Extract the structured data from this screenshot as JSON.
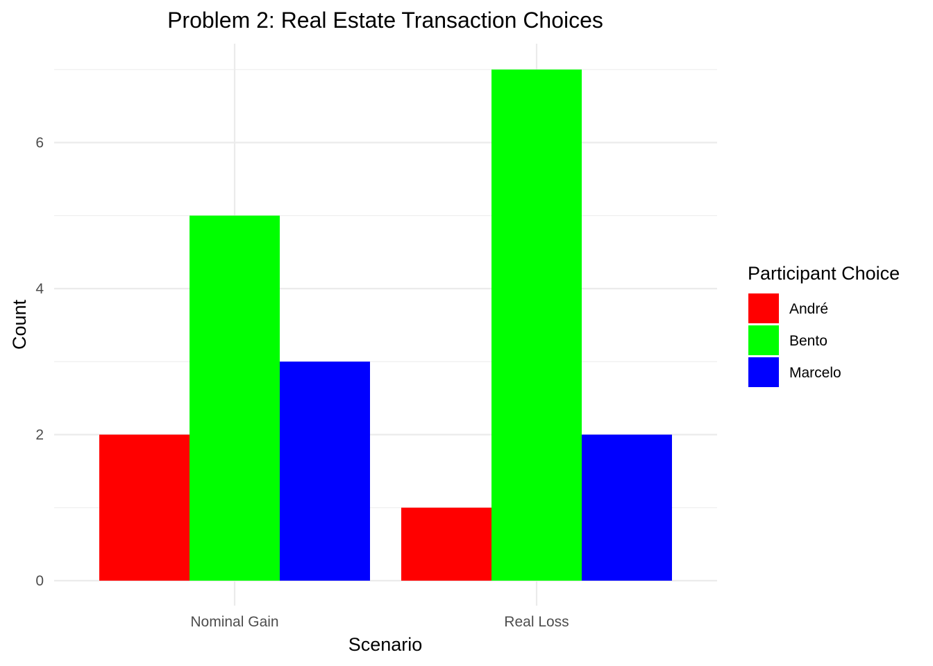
{
  "chart_data": {
    "type": "bar",
    "title": "Problem 2: Real Estate Transaction Choices",
    "xlabel": "Scenario",
    "ylabel": "Count",
    "categories": [
      "Nominal Gain",
      "Real Loss"
    ],
    "series": [
      {
        "name": "André",
        "color": "#ff0000",
        "values": [
          2,
          1
        ]
      },
      {
        "name": "Bento",
        "color": "#00ff00",
        "values": [
          5,
          7
        ]
      },
      {
        "name": "Marcelo",
        "color": "#0000ff",
        "values": [
          3,
          2
        ]
      }
    ],
    "ylim": [
      0,
      7
    ],
    "yticks": [
      "0",
      "2",
      "4",
      "6"
    ],
    "legend": {
      "title": "Participant Choice",
      "position": "right"
    },
    "grid": true
  }
}
